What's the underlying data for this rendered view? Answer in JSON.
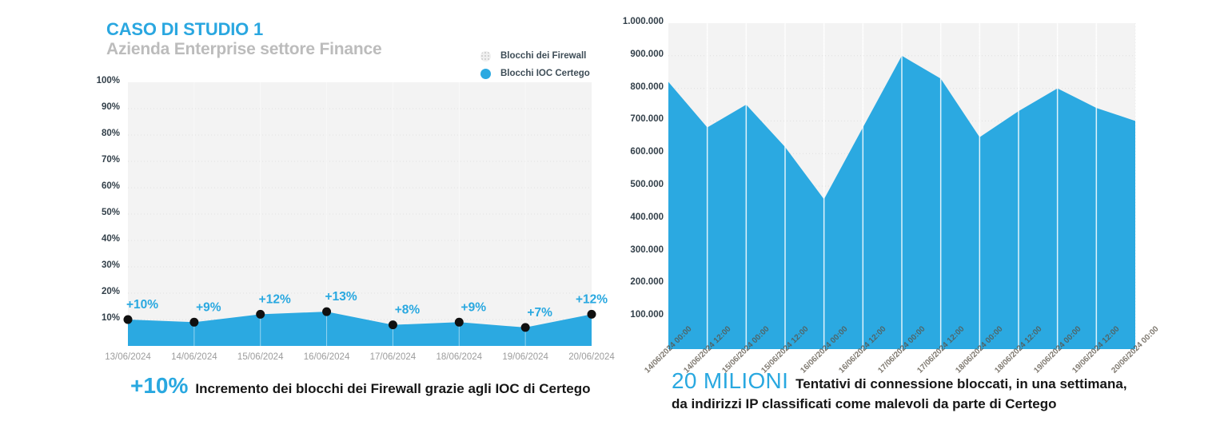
{
  "page": {
    "background": "#ffffff",
    "accent_blue": "#29a8e0",
    "plot_background": "#f3f3f3"
  },
  "left_chart": {
    "title": "CASO DI STUDIO 1",
    "subtitle": "Azienda Enterprise settore Finance",
    "legend": {
      "firewall_label": "Blocchi dei Firewall",
      "ioc_label": "Blocchi IOC Certego"
    },
    "caption": {
      "highlight": "+10%",
      "text": "Incremento dei blocchi dei Firewall grazie agli IOC di Certego"
    }
  },
  "right_chart": {
    "caption": {
      "highlight": "20 MILIONI",
      "line1": "Tentativi di connessione bloccati, in una settimana,",
      "line2": "da indirizzi IP classificati come malevoli da parte di Certego"
    }
  },
  "chart_data": [
    {
      "type": "area",
      "name": "firewall-ioc-increment",
      "title": "CASO DI STUDIO 1",
      "subtitle": "Azienda Enterprise settore Finance",
      "categories": [
        "13/06/2024",
        "14/06/2024",
        "15/06/2024",
        "16/06/2024",
        "17/06/2024",
        "18/06/2024",
        "19/06/2024",
        "20/06/2024"
      ],
      "series": [
        {
          "name": "Blocchi dei Firewall",
          "values": [
            100,
            100,
            100,
            100,
            100,
            100,
            100,
            100
          ],
          "color": "#f3f3f3"
        },
        {
          "name": "Blocchi IOC Certego",
          "values": [
            10,
            9,
            12,
            13,
            8,
            9,
            7,
            12
          ],
          "color": "#2ba9e1"
        }
      ],
      "point_labels": [
        "+10%",
        "+9%",
        "+12%",
        "+13%",
        "+8%",
        "+9%",
        "+7%",
        "+12%"
      ],
      "ylim": [
        0,
        100
      ],
      "ytick_labels": [
        "100%",
        "90%",
        "80%",
        "70%",
        "60%",
        "50%",
        "40%",
        "30%",
        "20%",
        "10%"
      ],
      "grid": true,
      "legend_position": "top-right"
    },
    {
      "type": "area",
      "name": "blocked-connections-week",
      "categories": [
        "14/06/2024 00:00",
        "14/06/2024 12:00",
        "15/06/2024 00:00",
        "15/06/2024 12:00",
        "16/06/2024 00:00",
        "16/06/2024 12:00",
        "17/06/2024 00:00",
        "17/06/2024 12:00",
        "18/06/2024 00:00",
        "18/06/2024 12:00",
        "19/06/2024 00:00",
        "19/06/2024 12:00",
        "20/06/2024 00:00"
      ],
      "values": [
        820000,
        680000,
        750000,
        620000,
        460000,
        680000,
        900000,
        830000,
        650000,
        730000,
        800000,
        740000,
        700000
      ],
      "ylim": [
        0,
        1000000
      ],
      "ytick_labels": [
        "1.000.000",
        "900.000",
        "800.000",
        "700.000",
        "600.000",
        "500.000",
        "400.000",
        "300.000",
        "200.000",
        "100.000"
      ],
      "color": "#2ba9e1",
      "grid": true
    }
  ]
}
